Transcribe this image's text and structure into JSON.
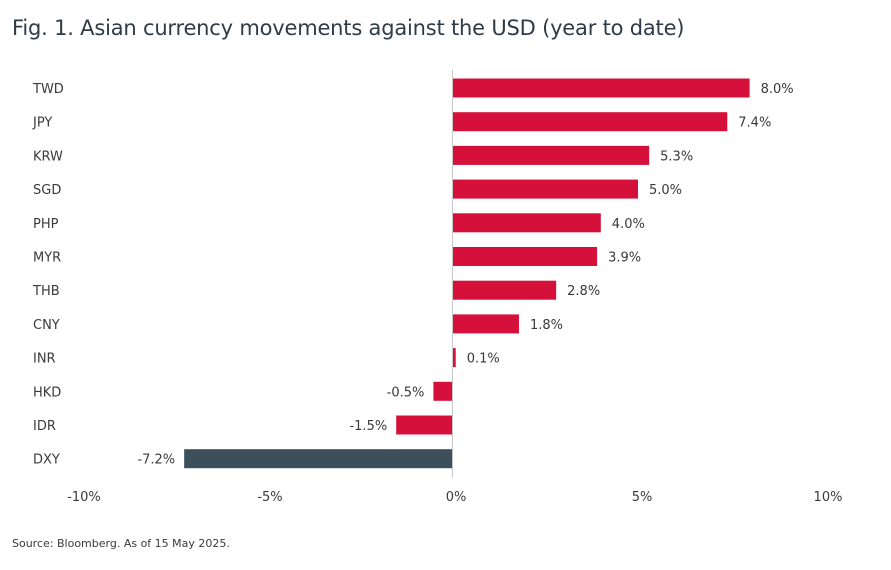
{
  "title": "Fig. 1. Asian currency movements against the USD (year to date)",
  "source": "Source: Bloomberg. As of 15 May 2025.",
  "colors": {
    "positive": "#d4103b",
    "negative": "#d4103b",
    "highlight": "#3d4f5b",
    "axis": "#c8c8c8",
    "text": "#3a3a3a"
  },
  "chart_data": {
    "type": "bar",
    "orientation": "horizontal",
    "title": "Fig. 1. Asian currency movements against the USD (year to date)",
    "xlabel": "",
    "ylabel": "",
    "xlim": [
      -10,
      10
    ],
    "grid": false,
    "legend": "none",
    "categories": [
      "TWD",
      "JPY",
      "KRW",
      "SGD",
      "PHP",
      "MYR",
      "THB",
      "CNY",
      "INR",
      "HKD",
      "IDR",
      "DXY"
    ],
    "values": [
      8.0,
      7.4,
      5.3,
      5.0,
      4.0,
      3.9,
      2.8,
      1.8,
      0.1,
      -0.5,
      -1.5,
      -7.2
    ],
    "value_labels": [
      "8.0%",
      "7.4%",
      "5.3%",
      "5.0%",
      "4.0%",
      "3.9%",
      "2.8%",
      "1.8%",
      "0.1%",
      "-0.5%",
      "-1.5%",
      "-7.2%"
    ],
    "highlight_category": "DXY",
    "ticks": [
      -10,
      -5,
      0,
      5,
      10
    ],
    "tick_labels": [
      "-10%",
      "-5%",
      "0%",
      "5%",
      "10%"
    ]
  }
}
